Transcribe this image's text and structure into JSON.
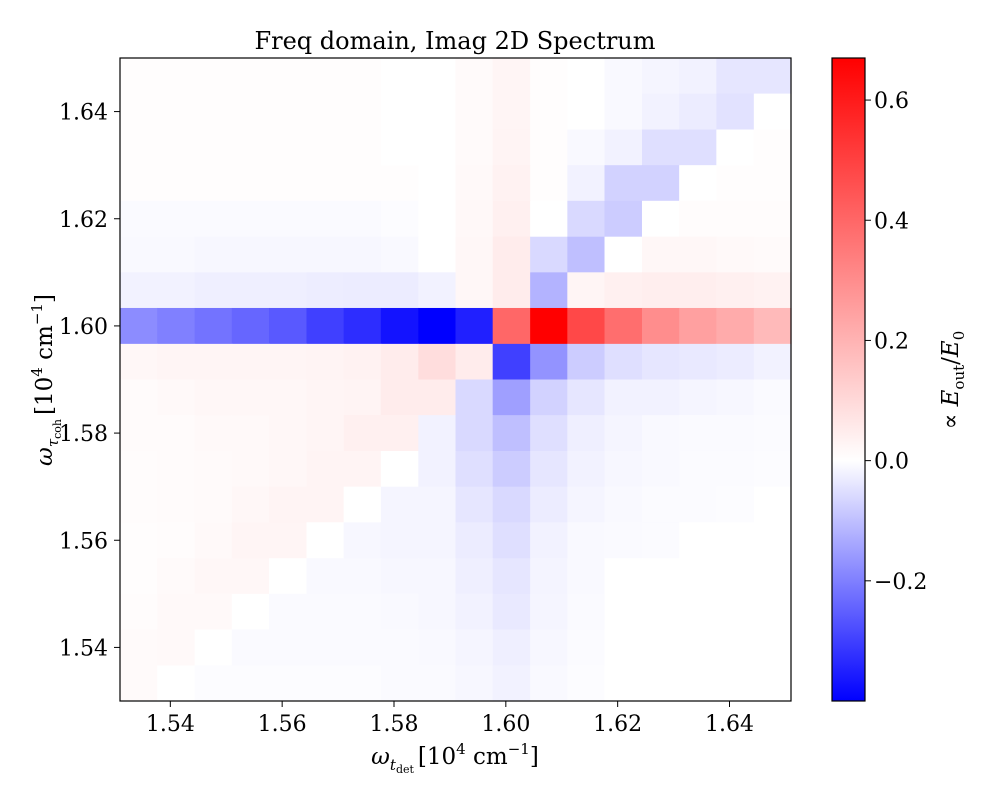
{
  "chart_data": {
    "type": "heatmap",
    "title": "Freq domain, Imag 2D Spectrum",
    "xlabel": {
      "symbol": "ω",
      "sub": "t",
      "subsub": "det",
      "unit_open": "[10",
      "unit_exp": "4",
      "unit_mid": " cm",
      "unit_exp2": "−1",
      "unit_close": "]"
    },
    "ylabel": {
      "symbol": "ω",
      "sub": "τ",
      "subsub": "coh",
      "unit_open": "[10",
      "unit_exp": "4",
      "unit_mid": " cm",
      "unit_exp2": "−1",
      "unit_close": "]"
    },
    "x_range": [
      1.531,
      1.651
    ],
    "y_range": [
      1.53,
      1.65
    ],
    "x_ticks": [
      {
        "value": 1.54,
        "label": "1.54"
      },
      {
        "value": 1.56,
        "label": "1.56"
      },
      {
        "value": 1.58,
        "label": "1.58"
      },
      {
        "value": 1.6,
        "label": "1.60"
      },
      {
        "value": 1.62,
        "label": "1.62"
      },
      {
        "value": 1.64,
        "label": "1.64"
      }
    ],
    "y_ticks": [
      {
        "value": 1.54,
        "label": "1.54"
      },
      {
        "value": 1.56,
        "label": "1.56"
      },
      {
        "value": 1.58,
        "label": "1.58"
      },
      {
        "value": 1.6,
        "label": "1.60"
      },
      {
        "value": 1.62,
        "label": "1.62"
      },
      {
        "value": 1.64,
        "label": "1.64"
      }
    ],
    "x_centers": [
      1.5343,
      1.541,
      1.5477,
      1.5543,
      1.561,
      1.5677,
      1.5743,
      1.581,
      1.5877,
      1.5943,
      1.601,
      1.6077,
      1.6143,
      1.621,
      1.6277,
      1.6343,
      1.641,
      1.6477
    ],
    "y_centers": [
      1.5333,
      1.54,
      1.5467,
      1.5533,
      1.56,
      1.5667,
      1.5733,
      1.58,
      1.5867,
      1.5933,
      1.6,
      1.6067,
      1.6133,
      1.62,
      1.6267,
      1.6333,
      1.64,
      1.6467
    ],
    "z_rows_top_to_bottom": [
      [
        0.004,
        0.004,
        0.004,
        0.004,
        0.004,
        0.004,
        0.004,
        0.0,
        0.0,
        0.012,
        0.025,
        0.004,
        0.0,
        -0.01,
        -0.015,
        -0.02,
        -0.04,
        -0.04
      ],
      [
        0.004,
        0.004,
        0.004,
        0.004,
        0.004,
        0.004,
        0.004,
        0.0,
        0.0,
        0.012,
        0.025,
        0.004,
        0.0,
        -0.01,
        -0.02,
        -0.03,
        -0.045,
        0.0
      ],
      [
        0.004,
        0.004,
        0.004,
        0.004,
        0.004,
        0.004,
        0.004,
        0.0,
        0.0,
        0.012,
        0.03,
        0.004,
        -0.01,
        -0.02,
        -0.05,
        -0.05,
        0.0,
        0.004
      ],
      [
        0.004,
        0.004,
        0.004,
        0.004,
        0.004,
        0.004,
        0.004,
        0.004,
        0.0,
        0.015,
        0.035,
        0.004,
        -0.02,
        -0.07,
        -0.07,
        0.0,
        0.004,
        0.004
      ],
      [
        -0.008,
        -0.008,
        -0.008,
        -0.008,
        -0.008,
        -0.008,
        -0.008,
        -0.004,
        0.0,
        0.018,
        0.04,
        0.0,
        -0.06,
        -0.08,
        0.0,
        0.008,
        0.008,
        0.008
      ],
      [
        -0.01,
        -0.01,
        -0.012,
        -0.012,
        -0.012,
        -0.012,
        -0.012,
        -0.01,
        0.0,
        0.02,
        0.05,
        -0.06,
        -0.1,
        0.0,
        0.02,
        0.02,
        0.015,
        0.012
      ],
      [
        -0.02,
        -0.02,
        -0.025,
        -0.025,
        -0.025,
        -0.028,
        -0.03,
        -0.03,
        -0.02,
        0.02,
        0.05,
        -0.12,
        0.025,
        0.04,
        0.045,
        0.045,
        0.04,
        0.035
      ],
      [
        -0.18,
        -0.2,
        -0.22,
        -0.24,
        -0.26,
        -0.3,
        -0.33,
        -0.37,
        -0.4,
        -0.35,
        0.4,
        0.67,
        0.48,
        0.38,
        0.3,
        0.25,
        0.22,
        0.18
      ],
      [
        0.02,
        0.025,
        0.025,
        0.025,
        0.025,
        0.03,
        0.035,
        0.05,
        0.09,
        0.05,
        -0.3,
        -0.17,
        -0.08,
        -0.05,
        -0.04,
        -0.035,
        -0.03,
        -0.02
      ],
      [
        0.01,
        0.015,
        0.02,
        0.02,
        0.02,
        0.025,
        0.03,
        0.05,
        0.05,
        -0.06,
        -0.15,
        -0.07,
        -0.04,
        -0.02,
        -0.02,
        -0.015,
        -0.012,
        -0.008
      ],
      [
        0.01,
        0.01,
        0.015,
        0.015,
        0.02,
        0.025,
        0.04,
        0.04,
        -0.02,
        -0.06,
        -0.1,
        -0.05,
        -0.025,
        -0.015,
        -0.01,
        -0.008,
        -0.008,
        -0.006
      ],
      [
        0.008,
        0.01,
        0.012,
        0.015,
        0.02,
        0.03,
        0.03,
        0.0,
        -0.02,
        -0.05,
        -0.08,
        -0.04,
        -0.02,
        -0.012,
        -0.01,
        -0.006,
        -0.006,
        -0.004
      ],
      [
        0.008,
        0.01,
        0.012,
        0.02,
        0.03,
        0.03,
        0.0,
        -0.015,
        -0.015,
        -0.04,
        -0.06,
        -0.03,
        -0.015,
        -0.01,
        -0.006,
        -0.006,
        -0.004,
        0.0
      ],
      [
        0.006,
        0.008,
        0.015,
        0.025,
        0.025,
        0.0,
        -0.012,
        -0.015,
        -0.015,
        -0.03,
        -0.05,
        -0.02,
        -0.01,
        -0.008,
        -0.006,
        0.0,
        0.0,
        0.0
      ],
      [
        0.006,
        0.012,
        0.02,
        0.02,
        0.0,
        -0.01,
        -0.01,
        -0.012,
        -0.012,
        -0.025,
        -0.04,
        -0.018,
        -0.01,
        0.0,
        0.0,
        0.0,
        0.0,
        0.0
      ],
      [
        0.008,
        0.015,
        0.015,
        0.0,
        -0.008,
        -0.008,
        -0.008,
        -0.01,
        -0.012,
        -0.02,
        -0.035,
        -0.015,
        -0.008,
        0.0,
        0.0,
        0.0,
        0.0,
        0.0
      ],
      [
        0.012,
        0.015,
        0.0,
        -0.008,
        -0.008,
        -0.008,
        -0.008,
        -0.008,
        -0.01,
        -0.015,
        -0.025,
        -0.012,
        -0.006,
        0.0,
        0.0,
        0.0,
        0.0,
        0.0
      ],
      [
        0.012,
        0.0,
        -0.004,
        -0.004,
        -0.004,
        -0.004,
        -0.004,
        -0.008,
        -0.008,
        -0.012,
        -0.02,
        -0.01,
        -0.004,
        0.0,
        0.0,
        0.0,
        0.0,
        0.0
      ]
    ],
    "colormap": {
      "name": "bwr",
      "low": "#0000ff",
      "mid": "#ffffff",
      "high": "#ff0000"
    },
    "zlim": [
      -0.4,
      0.67
    ],
    "colorbar": {
      "label_prefix": "∝ ",
      "label_symbol": "E",
      "label_sub": "out",
      "label_slash": "/",
      "label_symbol2": "E",
      "label_sub2": "0",
      "ticks": [
        {
          "value": 0.6,
          "label": "0.6"
        },
        {
          "value": 0.4,
          "label": "0.4"
        },
        {
          "value": 0.2,
          "label": "0.2"
        },
        {
          "value": 0.0,
          "label": "0.0"
        },
        {
          "value": -0.2,
          "label": "−0.2"
        }
      ]
    },
    "grid": false,
    "legend": "none"
  }
}
